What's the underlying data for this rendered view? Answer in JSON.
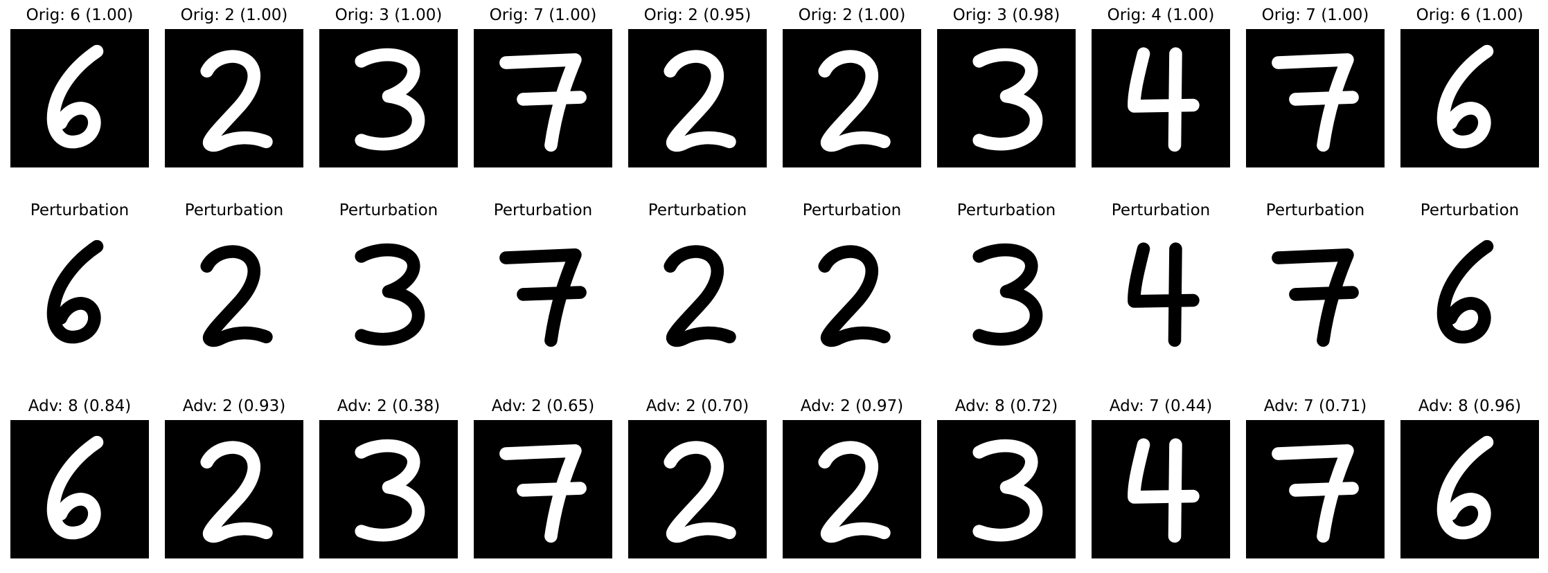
{
  "figure": {
    "rows": [
      {
        "name": "original",
        "background": "#000000",
        "stroke": "#ffffff",
        "panels": [
          {
            "title": "Orig: 6 (1.00)",
            "digit": "6"
          },
          {
            "title": "Orig: 2 (1.00)",
            "digit": "2"
          },
          {
            "title": "Orig: 3 (1.00)",
            "digit": "3"
          },
          {
            "title": "Orig: 7 (1.00)",
            "digit": "7"
          },
          {
            "title": "Orig: 2 (0.95)",
            "digit": "2"
          },
          {
            "title": "Orig: 2 (1.00)",
            "digit": "2"
          },
          {
            "title": "Orig: 3 (0.98)",
            "digit": "3"
          },
          {
            "title": "Orig: 4 (1.00)",
            "digit": "4"
          },
          {
            "title": "Orig: 7 (1.00)",
            "digit": "7"
          },
          {
            "title": "Orig: 6 (1.00)",
            "digit": "6"
          }
        ]
      },
      {
        "name": "perturbation",
        "background": "#ffffff",
        "stroke": "#000000",
        "panels": [
          {
            "title": "Perturbation",
            "digit": "6"
          },
          {
            "title": "Perturbation",
            "digit": "2"
          },
          {
            "title": "Perturbation",
            "digit": "3"
          },
          {
            "title": "Perturbation",
            "digit": "7"
          },
          {
            "title": "Perturbation",
            "digit": "2"
          },
          {
            "title": "Perturbation",
            "digit": "2"
          },
          {
            "title": "Perturbation",
            "digit": "3"
          },
          {
            "title": "Perturbation",
            "digit": "4"
          },
          {
            "title": "Perturbation",
            "digit": "7"
          },
          {
            "title": "Perturbation",
            "digit": "6"
          }
        ]
      },
      {
        "name": "adversarial",
        "background": "#000000",
        "stroke": "#ffffff",
        "panels": [
          {
            "title": "Adv: 8 (0.84)",
            "digit": "6"
          },
          {
            "title": "Adv: 2 (0.93)",
            "digit": "2"
          },
          {
            "title": "Adv: 2 (0.38)",
            "digit": "3"
          },
          {
            "title": "Adv: 2 (0.65)",
            "digit": "7"
          },
          {
            "title": "Adv: 2 (0.70)",
            "digit": "2"
          },
          {
            "title": "Adv: 2 (0.97)",
            "digit": "2"
          },
          {
            "title": "Adv: 8 (0.72)",
            "digit": "3"
          },
          {
            "title": "Adv: 7 (0.44)",
            "digit": "4"
          },
          {
            "title": "Adv: 7 (0.71)",
            "digit": "7"
          },
          {
            "title": "Adv: 8 (0.96)",
            "digit": "6"
          }
        ]
      }
    ]
  }
}
